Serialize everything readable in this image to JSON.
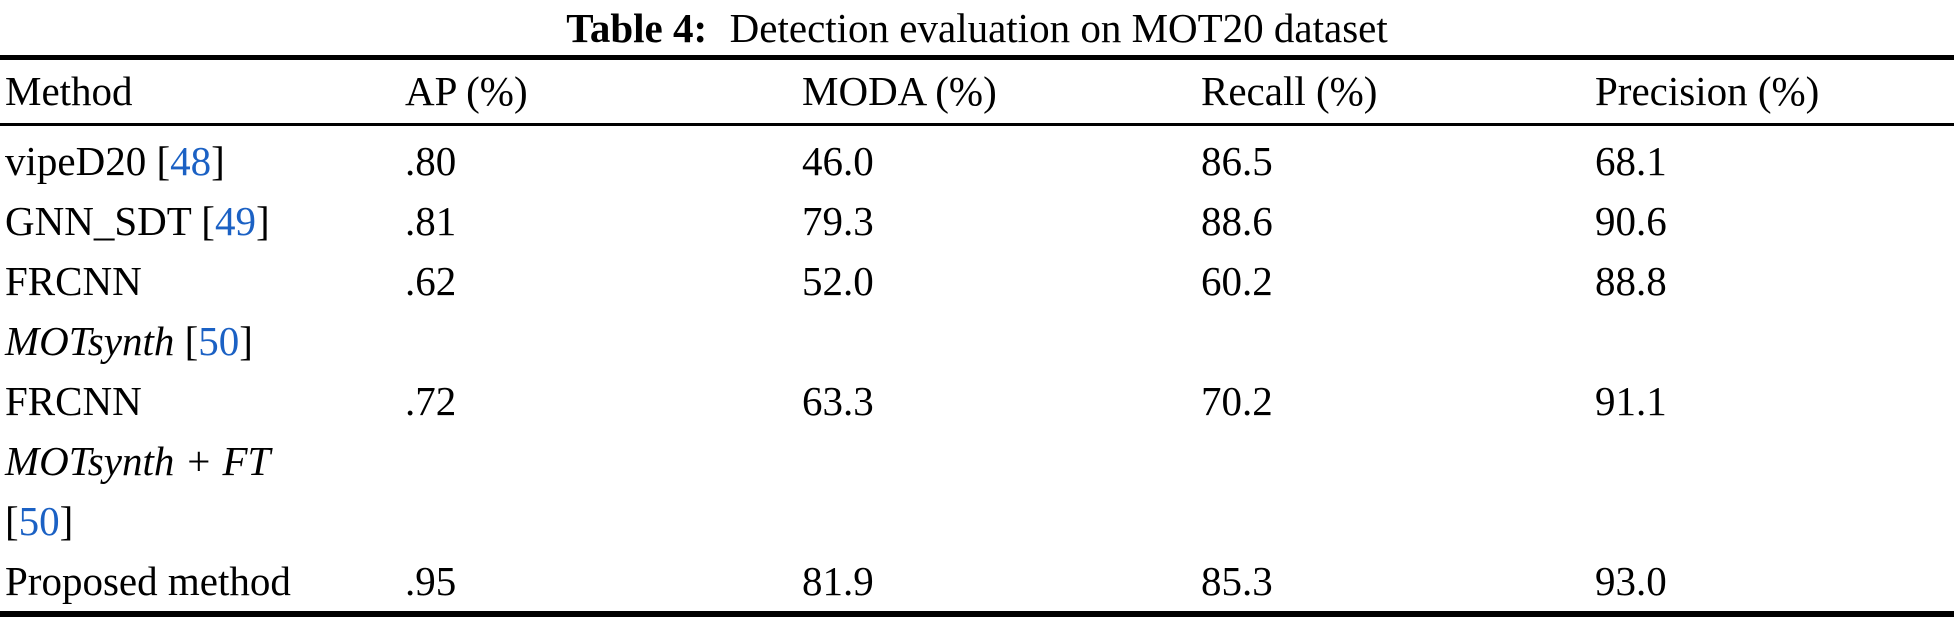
{
  "caption": {
    "label": "Table 4:",
    "text": "Detection evaluation on MOT20 dataset"
  },
  "colors": {
    "citation_link": "#1b61c4",
    "text": "#000000",
    "background": "#ffffff"
  },
  "table": {
    "columns": [
      "Method",
      "AP (%)",
      "MODA (%)",
      "Recall (%)",
      "Precision (%)"
    ],
    "rows": [
      {
        "method_lines": [
          [
            {
              "text": "vipeD20 ",
              "style": "normal"
            },
            {
              "text": "[",
              "style": "normal"
            },
            {
              "text": "48",
              "style": "cite"
            },
            {
              "text": "]",
              "style": "normal"
            }
          ]
        ],
        "ap": ".80",
        "moda": "46.0",
        "recall": "86.5",
        "precision": "68.1"
      },
      {
        "method_lines": [
          [
            {
              "text": "GNN_SDT ",
              "style": "normal"
            },
            {
              "text": "[",
              "style": "normal"
            },
            {
              "text": "49",
              "style": "cite"
            },
            {
              "text": "]",
              "style": "normal"
            }
          ]
        ],
        "ap": ".81",
        "moda": "79.3",
        "recall": "88.6",
        "precision": "90.6"
      },
      {
        "method_lines": [
          [
            {
              "text": "FRCNN",
              "style": "normal"
            }
          ],
          [
            {
              "text": "MOTsynth",
              "style": "italic"
            },
            {
              "text": " [",
              "style": "normal"
            },
            {
              "text": "50",
              "style": "cite"
            },
            {
              "text": "]",
              "style": "normal"
            }
          ]
        ],
        "ap": ".62",
        "moda": "52.0",
        "recall": "60.2",
        "precision": "88.8"
      },
      {
        "method_lines": [
          [
            {
              "text": "FRCNN",
              "style": "normal"
            }
          ],
          [
            {
              "text": "MOTsynth + FT",
              "style": "italic"
            }
          ],
          [
            {
              "text": "[",
              "style": "normal"
            },
            {
              "text": "50",
              "style": "cite"
            },
            {
              "text": "]",
              "style": "normal"
            }
          ]
        ],
        "ap": ".72",
        "moda": "63.3",
        "recall": "70.2",
        "precision": "91.1"
      },
      {
        "method_lines": [
          [
            {
              "text": "Proposed method",
              "style": "normal"
            }
          ]
        ],
        "ap": ".95",
        "moda": "81.9",
        "recall": "85.3",
        "precision": "93.0"
      }
    ]
  }
}
